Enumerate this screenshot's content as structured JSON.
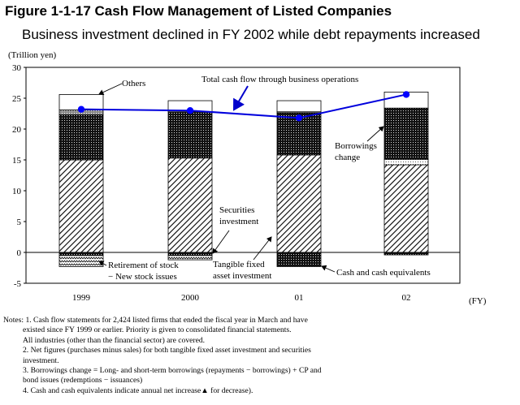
{
  "header": {
    "title": "Figure 1-1-17  Cash Flow Management of Listed Companies",
    "subtitle": "Business investment declined in FY 2002 while debt repayments increased"
  },
  "chart_data": {
    "type": "bar",
    "stacked": true,
    "ylabel": "(Trillion yen)",
    "xlabel": "(FY)",
    "ylim": [
      -5,
      30
    ],
    "yticks": [
      -5,
      0,
      5,
      10,
      15,
      20,
      25,
      30
    ],
    "categories": [
      "1999",
      "2000",
      "01",
      "02"
    ],
    "series": [
      {
        "name": "Tangible fixed asset investment",
        "values": [
          15.0,
          15.3,
          15.8,
          14.2
        ]
      },
      {
        "name": "Securities investment",
        "values": [
          0.0,
          0.0,
          0.0,
          0.9
        ]
      },
      {
        "name": "Borrowings change",
        "values": [
          7.3,
          7.5,
          6.8,
          8.3
        ]
      },
      {
        "name": "Retirement of stock − New stock issues",
        "values": [
          0.8,
          0.0,
          0.2,
          0.0
        ]
      },
      {
        "name": "Others",
        "values": [
          2.5,
          1.8,
          1.8,
          2.6
        ]
      },
      {
        "name": "Cash and cash equivalents",
        "values": [
          -0.5,
          -0.5,
          -2.3,
          -0.4
        ]
      },
      {
        "name": "Retirement of stock − New stock issues (negative)",
        "values": [
          -1.8,
          -0.7,
          0.0,
          0.0
        ]
      }
    ],
    "line_series": {
      "name": "Total cash flow through business operations",
      "values": [
        23.2,
        23.0,
        21.8,
        25.6
      ]
    },
    "annotations": {
      "others": "Others",
      "total_cf": "Total cash flow through business operations",
      "borrowings_1": "Borrowings",
      "borrowings_2": "change",
      "securities_1": "Securities",
      "securities_2": "investment",
      "retirement_1": "Retirement of stock",
      "retirement_2": "− New stock issues",
      "tangible_1": "Tangible fixed",
      "tangible_2": "asset investment",
      "cash": "Cash and cash equivalents"
    }
  },
  "notes": [
    "Notes: 1. Cash flow statements for 2,424 listed firms that ended the fiscal year in March and have",
    "existed since FY 1999 or earlier. Priority is given to consolidated financial statements.",
    "All industries (other than the financial sector) are covered.",
    "2. Net figures (purchases minus sales) for both tangible fixed asset investment and securities",
    "investment.",
    "3. Borrowings change = Long- and short-term borrowings (repayments − borrowings) + CP and",
    "bond issues (redemptions − issuances)",
    "4. Cash and cash equivalents indicate annual net increase",
    " for decrease)."
  ]
}
